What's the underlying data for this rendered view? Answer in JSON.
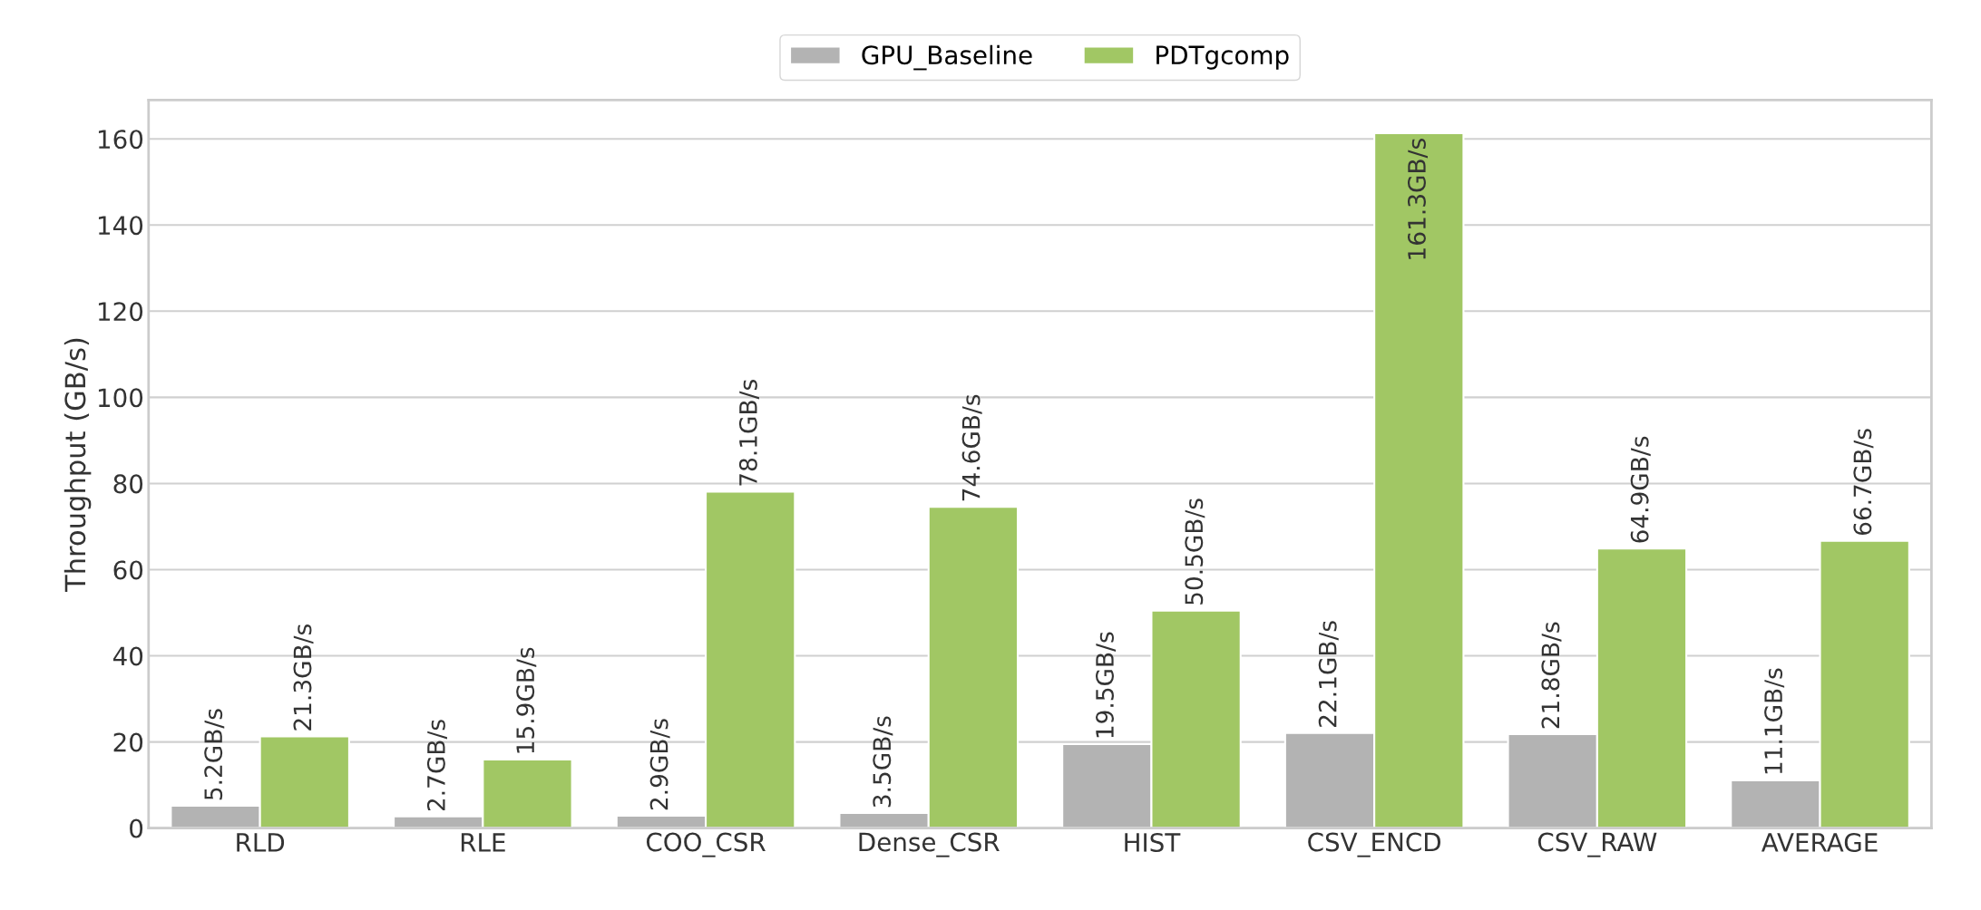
{
  "chart_data": {
    "type": "bar",
    "ylabel": "Throughput (GB/s)",
    "categories": [
      "RLD",
      "RLE",
      "COO_CSR",
      "Dense_CSR",
      "HIST",
      "CSV_ENCD",
      "CSV_RAW",
      "AVERAGE"
    ],
    "series": [
      {
        "name": "GPU_Baseline",
        "color": "#b3b3b3",
        "values": [
          5.2,
          2.7,
          2.9,
          3.5,
          19.5,
          22.1,
          21.8,
          11.1
        ],
        "value_labels": [
          "5.2GB/s",
          "2.7GB/s",
          "2.9GB/s",
          "3.5GB/s",
          "19.5GB/s",
          "22.1GB/s",
          "21.8GB/s",
          "11.1GB/s"
        ]
      },
      {
        "name": "PDTgcomp",
        "color": "#a1c764",
        "values": [
          21.3,
          15.9,
          78.1,
          74.6,
          50.5,
          161.3,
          64.9,
          66.7
        ],
        "value_labels": [
          "21.3GB/s",
          "15.9GB/s",
          "78.1GB/s",
          "74.6GB/s",
          "50.5GB/s",
          "161.3GB/s",
          "64.9GB/s",
          "66.7GB/s"
        ]
      }
    ],
    "ylim": [
      0,
      169
    ],
    "yticks": [
      0,
      20,
      40,
      60,
      80,
      100,
      120,
      140,
      160
    ],
    "grid": "y",
    "legend": "top"
  }
}
